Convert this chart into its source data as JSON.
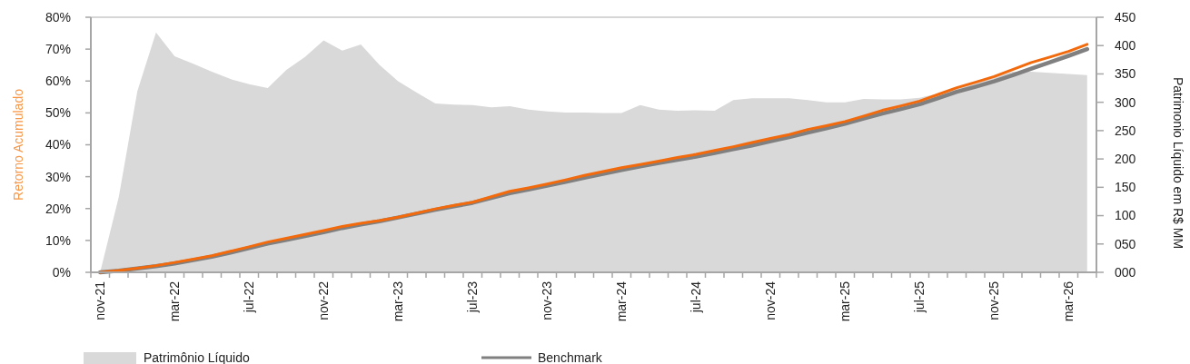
{
  "chart_data": {
    "type": "line",
    "ylabel": "Retorno Acumulado",
    "y2label": "Patrimonio Líquido em R$ MM",
    "categories": [
      "nov-21",
      null,
      null,
      null,
      "mar-22",
      null,
      null,
      null,
      "jul-22",
      null,
      null,
      null,
      "nov-22",
      null,
      null,
      null,
      "mar-23",
      null,
      null,
      null,
      "jul-23",
      null,
      null,
      null,
      "nov-23",
      null,
      null,
      null,
      "mar-24",
      null,
      null,
      null,
      "jul-24",
      null,
      null,
      null,
      "nov-24",
      null,
      null,
      null,
      "mar-25",
      null,
      null,
      null,
      "jul-25",
      null,
      null,
      null,
      "nov-25",
      null,
      null,
      null,
      "mar-26",
      null
    ],
    "series": [
      {
        "name": "Patrimônio Líquido",
        "type": "area",
        "axis": "y2",
        "color": "#d9d9d9",
        "values": [
          0,
          133,
          320,
          423,
          381,
          368,
          354,
          341,
          332,
          325,
          357,
          380,
          409,
          391,
          402,
          366,
          337,
          317,
          298,
          296,
          295,
          291,
          293,
          287,
          284,
          282,
          282,
          281,
          281,
          295,
          287,
          285,
          286,
          285,
          304,
          307,
          307,
          307,
          304,
          300,
          300,
          306,
          305,
          305,
          308,
          315,
          325,
          335,
          345,
          354,
          354,
          352,
          350,
          348
        ]
      },
      {
        "name": "Benchmark",
        "color": "#808080",
        "values": [
          0,
          0.5,
          1.2,
          1.9,
          2.8,
          3.8,
          4.9,
          6.2,
          7.6,
          9.0,
          10.2,
          11.4,
          12.6,
          13.9,
          15.0,
          16.0,
          17.2,
          18.4,
          19.6,
          20.7,
          21.8,
          23.3,
          24.8,
          26.0,
          27.2,
          28.4,
          29.7,
          30.9,
          32.1,
          33.2,
          34.3,
          35.3,
          36.3,
          37.4,
          38.6,
          39.8,
          41.1,
          42.4,
          43.8,
          45.2,
          46.6,
          48.2,
          49.8,
          51.2,
          52.7,
          54.6,
          56.6,
          58.2,
          59.9,
          61.8,
          63.9,
          65.9,
          67.9,
          70.0
        ]
      },
      {
        "color": "#f26a0c",
        "values": [
          0,
          0.6,
          1.3,
          2.1,
          3.1,
          4.1,
          5.2,
          6.6,
          8.0,
          9.5,
          10.7,
          11.9,
          13.1,
          14.4,
          15.4,
          16.2,
          17.3,
          18.6,
          19.9,
          21.0,
          22.0,
          23.7,
          25.4,
          26.5,
          27.7,
          29.0,
          30.4,
          31.6,
          32.8,
          33.8,
          34.9,
          36.0,
          37.0,
          38.2,
          39.4,
          40.7,
          42.0,
          43.2,
          44.8,
          46.0,
          47.3,
          49.0,
          50.8,
          52.2,
          53.7,
          55.8,
          57.9,
          59.6,
          61.4,
          63.6,
          65.8,
          67.5,
          69.3,
          71.5
        ]
      }
    ],
    "ylim": [
      0,
      80
    ],
    "yticks": [
      {
        "value": 0,
        "label": "0%"
      },
      {
        "value": 10,
        "label": "10%"
      },
      {
        "value": 20,
        "label": "20%"
      },
      {
        "value": 30,
        "label": "30%"
      },
      {
        "value": 40,
        "label": "40%"
      },
      {
        "value": 50,
        "label": "50%"
      },
      {
        "value": 60,
        "label": "60%"
      },
      {
        "value": 70,
        "label": "70%"
      },
      {
        "value": 80,
        "label": "80%"
      }
    ],
    "y2lim": [
      0,
      450
    ],
    "y2ticks": [
      {
        "value": 0,
        "label": "000"
      },
      {
        "value": 50,
        "label": "050"
      },
      100,
      150,
      200,
      250,
      300,
      350,
      400,
      450
    ],
    "legend": "bottom",
    "grid": false,
    "marker": "none",
    "line_style": "solid"
  }
}
